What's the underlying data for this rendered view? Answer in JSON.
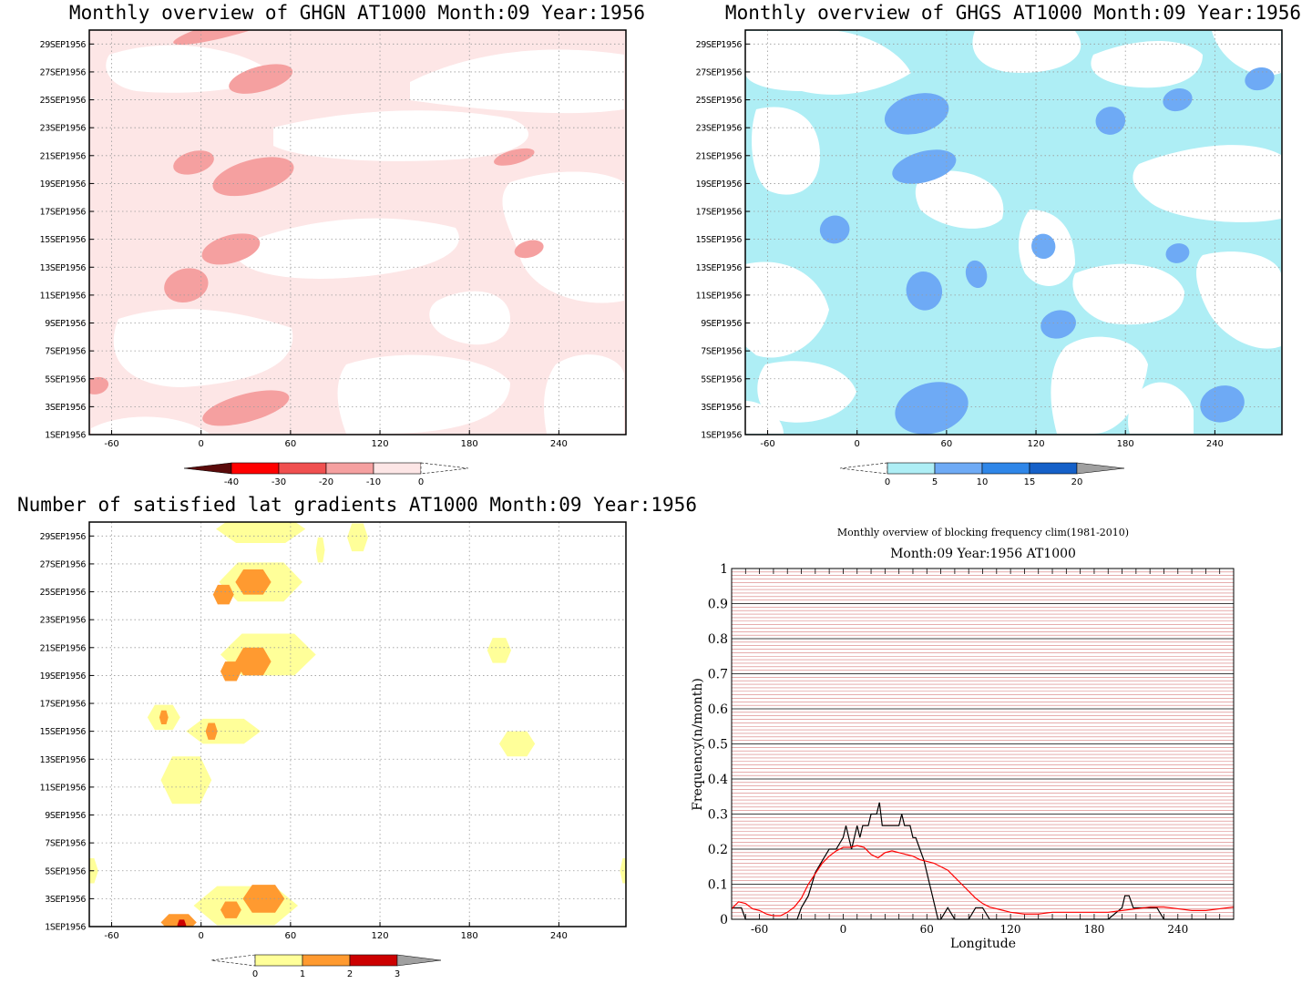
{
  "chart_data": [
    {
      "type": "heatmap",
      "title": "Monthly overview of GHGN AT1000 Month:09 Year:1956",
      "x_ticks": [
        "-60",
        "0",
        "60",
        "120",
        "180",
        "240"
      ],
      "x_tick_values": [
        -60,
        0,
        60,
        120,
        180,
        240
      ],
      "xlim": [
        -75,
        285
      ],
      "y_ticks": [
        "29SEP1956",
        "27SEP1956",
        "25SEP1956",
        "23SEP1956",
        "21SEP1956",
        "19SEP1956",
        "17SEP1956",
        "15SEP1956",
        "13SEP1956",
        "11SEP1956",
        "9SEP1956",
        "7SEP1956",
        "5SEP1956",
        "3SEP1956",
        "1SEP1956"
      ],
      "y_tick_values": [
        29,
        27,
        25,
        23,
        21,
        19,
        17,
        15,
        13,
        11,
        9,
        7,
        5,
        3,
        1
      ],
      "ylim": [
        1,
        30
      ],
      "grid": true,
      "colorbar": {
        "labels": [
          "-40",
          "-30",
          "-20",
          "-10",
          "0"
        ],
        "colors": [
          "#5a0a0a",
          "#ff0000",
          "#f05050",
          "#f5a0a0",
          "#fde6e6"
        ],
        "extend_low": true,
        "extend_high": true
      },
      "patches": [
        {
          "lon": -5,
          "day": 20.5,
          "rx": 14,
          "ry": 0.8,
          "level": "-20"
        },
        {
          "lon": 35,
          "day": 19.5,
          "rx": 28,
          "ry": 1.2,
          "level": "-20"
        },
        {
          "lon": 20,
          "day": 14.3,
          "rx": 20,
          "ry": 1.0,
          "level": "-20"
        },
        {
          "lon": -10,
          "day": 11.7,
          "rx": 15,
          "ry": 1.2,
          "level": "-20"
        },
        {
          "lon": 40,
          "day": 26.5,
          "rx": 22,
          "ry": 0.9,
          "level": "-20"
        },
        {
          "lon": 20,
          "day": 30.2,
          "rx": 40,
          "ry": 0.6,
          "level": "-20"
        },
        {
          "lon": 210,
          "day": 20.9,
          "rx": 14,
          "ry": 0.5,
          "level": "-20"
        },
        {
          "lon": 220,
          "day": 14.3,
          "rx": 10,
          "ry": 0.6,
          "level": "-20"
        },
        {
          "lon": 30,
          "day": 2.9,
          "rx": 30,
          "ry": 1.0,
          "level": "-20"
        },
        {
          "lon": -70,
          "day": 4.5,
          "rx": 8,
          "ry": 0.6,
          "level": "-20"
        }
      ]
    },
    {
      "type": "heatmap",
      "title": "Monthly overview of GHGS AT1000 Month:09 Year:1956",
      "x_ticks": [
        "-60",
        "0",
        "60",
        "120",
        "180",
        "240"
      ],
      "x_tick_values": [
        -60,
        0,
        60,
        120,
        180,
        240
      ],
      "xlim": [
        -75,
        285
      ],
      "y_ticks": [
        "29SEP1956",
        "27SEP1956",
        "25SEP1956",
        "23SEP1956",
        "21SEP1956",
        "19SEP1956",
        "17SEP1956",
        "15SEP1956",
        "13SEP1956",
        "11SEP1956",
        "9SEP1956",
        "7SEP1956",
        "5SEP1956",
        "3SEP1956",
        "1SEP1956"
      ],
      "y_tick_values": [
        29,
        27,
        25,
        23,
        21,
        19,
        17,
        15,
        13,
        11,
        9,
        7,
        5,
        3,
        1
      ],
      "ylim": [
        1,
        30
      ],
      "grid": true,
      "colorbar": {
        "labels": [
          "0",
          "5",
          "10",
          "15",
          "20"
        ],
        "colors": [
          "#aeeef5",
          "#6eaaf5",
          "#2f86e8",
          "#1560c8",
          "#a0a0a0"
        ],
        "extend_low": true,
        "extend_high": true
      },
      "patches": [
        {
          "lon": 40,
          "day": 24.0,
          "rx": 22,
          "ry": 1.4,
          "level": "5"
        },
        {
          "lon": 45,
          "day": 20.2,
          "rx": 22,
          "ry": 1.1,
          "level": "5"
        },
        {
          "lon": -15,
          "day": 15.7,
          "rx": 10,
          "ry": 1.0,
          "level": "5"
        },
        {
          "lon": 45,
          "day": 11.3,
          "rx": 12,
          "ry": 1.4,
          "level": "5"
        },
        {
          "lon": 50,
          "day": 2.9,
          "rx": 25,
          "ry": 1.8,
          "level": "5"
        },
        {
          "lon": 245,
          "day": 3.2,
          "rx": 15,
          "ry": 1.3,
          "level": "5"
        },
        {
          "lon": 170,
          "day": 23.5,
          "rx": 10,
          "ry": 1.0,
          "level": "5"
        },
        {
          "lon": 215,
          "day": 25.0,
          "rx": 10,
          "ry": 0.8,
          "level": "5"
        },
        {
          "lon": 215,
          "day": 14.0,
          "rx": 8,
          "ry": 0.7,
          "level": "5"
        },
        {
          "lon": 135,
          "day": 8.9,
          "rx": 12,
          "ry": 1.0,
          "level": "5"
        },
        {
          "lon": 125,
          "day": 14.5,
          "rx": 8,
          "ry": 0.9,
          "level": "5"
        },
        {
          "lon": 80,
          "day": 12.5,
          "rx": 7,
          "ry": 1.0,
          "level": "5"
        },
        {
          "lon": 270,
          "day": 26.5,
          "rx": 10,
          "ry": 0.8,
          "level": "5"
        }
      ]
    },
    {
      "type": "heatmap",
      "title": "Number of satisfied lat gradients AT1000 Month:09 Year:1956",
      "x_ticks": [
        "-60",
        "0",
        "60",
        "120",
        "180",
        "240"
      ],
      "x_tick_values": [
        -60,
        0,
        60,
        120,
        180,
        240
      ],
      "xlim": [
        -75,
        285
      ],
      "y_ticks": [
        "29SEP1956",
        "27SEP1956",
        "25SEP1956",
        "23SEP1956",
        "21SEP1956",
        "19SEP1956",
        "17SEP1956",
        "15SEP1956",
        "13SEP1956",
        "11SEP1956",
        "9SEP1956",
        "7SEP1956",
        "5SEP1956",
        "3SEP1956",
        "1SEP1956"
      ],
      "y_tick_values": [
        29,
        27,
        25,
        23,
        21,
        19,
        17,
        15,
        13,
        11,
        9,
        7,
        5,
        3,
        1
      ],
      "ylim": [
        1,
        30
      ],
      "grid": true,
      "colorbar": {
        "labels": [
          "0",
          "1",
          "2",
          "3"
        ],
        "colors": [
          "#ffff99",
          "#ff9a30",
          "#cc0000",
          "#a0a0a0"
        ],
        "extend_low": true,
        "extend_high": true
      },
      "patches": [
        {
          "lon": 40,
          "day": 29.5,
          "rx": 30,
          "ry": 1.0,
          "level": "1"
        },
        {
          "lon": 105,
          "day": 28.9,
          "rx": 7,
          "ry": 1.0,
          "level": "1"
        },
        {
          "lon": 80,
          "day": 28.0,
          "rx": 3,
          "ry": 0.9,
          "level": "1"
        },
        {
          "lon": 40,
          "day": 25.7,
          "rx": 28,
          "ry": 1.4,
          "level": "1"
        },
        {
          "lon": 35,
          "day": 25.7,
          "rx": 12,
          "ry": 0.9,
          "level": "2"
        },
        {
          "lon": 15,
          "day": 24.8,
          "rx": 7,
          "ry": 0.7,
          "level": "2"
        },
        {
          "lon": 45,
          "day": 20.5,
          "rx": 32,
          "ry": 1.5,
          "level": "1"
        },
        {
          "lon": 35,
          "day": 20.0,
          "rx": 12,
          "ry": 1.0,
          "level": "2"
        },
        {
          "lon": 20,
          "day": 19.3,
          "rx": 7,
          "ry": 0.7,
          "level": "2"
        },
        {
          "lon": 200,
          "day": 20.8,
          "rx": 8,
          "ry": 0.9,
          "level": "1"
        },
        {
          "lon": -25,
          "day": 16.0,
          "rx": 11,
          "ry": 0.9,
          "level": "1"
        },
        {
          "lon": -25,
          "day": 16.0,
          "rx": 3,
          "ry": 0.5,
          "level": "2"
        },
        {
          "lon": 15,
          "day": 15.0,
          "rx": 25,
          "ry": 0.9,
          "level": "1"
        },
        {
          "lon": 7,
          "day": 15.0,
          "rx": 4,
          "ry": 0.6,
          "level": "2"
        },
        {
          "lon": 212,
          "day": 14.1,
          "rx": 12,
          "ry": 0.9,
          "level": "1"
        },
        {
          "lon": -10,
          "day": 11.5,
          "rx": 17,
          "ry": 1.7,
          "level": "1"
        },
        {
          "lon": -75,
          "day": 5.0,
          "rx": 6,
          "ry": 0.9,
          "level": "1"
        },
        {
          "lon": 285,
          "day": 5.0,
          "rx": 4,
          "ry": 0.9,
          "level": "1"
        },
        {
          "lon": 30,
          "day": 2.5,
          "rx": 35,
          "ry": 1.4,
          "level": "1"
        },
        {
          "lon": 42,
          "day": 3.0,
          "rx": 14,
          "ry": 1.0,
          "level": "2"
        },
        {
          "lon": 20,
          "day": 2.2,
          "rx": 7,
          "ry": 0.6,
          "level": "2"
        },
        {
          "lon": -15,
          "day": 1.3,
          "rx": 12,
          "ry": 0.6,
          "level": "2"
        },
        {
          "lon": -13,
          "day": 1.1,
          "rx": 3,
          "ry": 0.4,
          "level": "3"
        }
      ]
    },
    {
      "type": "line",
      "title": "Monthly overview of blocking frequency clim(1981-2010)",
      "subtitle": "Month:09 Year:1956  AT1000",
      "xlabel": "Longitude",
      "ylabel": "Frequency(n/month)",
      "xlim": [
        -80,
        280
      ],
      "ylim": [
        0,
        1
      ],
      "x_ticks": [
        "-60",
        "0",
        "60",
        "120",
        "180",
        "240"
      ],
      "x_tick_values": [
        -60,
        0,
        60,
        120,
        180,
        240
      ],
      "y_ticks": [
        "0",
        "0.1",
        "0.2",
        "0.3",
        "0.4",
        "0.5",
        "0.6",
        "0.7",
        "0.8",
        "0.9",
        "1"
      ],
      "y_tick_values": [
        0,
        0.1,
        0.2,
        0.3,
        0.4,
        0.5,
        0.6,
        0.7,
        0.8,
        0.9,
        1
      ],
      "grid": true,
      "series": [
        {
          "color": "#000000",
          "x": [
            -80,
            -75,
            -73,
            -70,
            -67,
            -60,
            -50,
            -40,
            -33,
            -30,
            -25,
            -20,
            -15,
            -10,
            -5,
            0,
            2,
            4,
            6,
            8,
            10,
            12,
            14,
            16,
            18,
            20,
            22,
            24,
            26,
            28,
            30,
            32,
            34,
            36,
            38,
            40,
            42,
            44,
            46,
            48,
            50,
            52,
            55,
            58,
            60,
            62,
            64,
            66,
            68,
            70,
            75,
            80,
            82,
            85,
            88,
            90,
            95,
            100,
            105,
            110,
            115,
            120,
            150,
            170,
            190,
            200,
            202,
            205,
            208,
            210,
            220,
            225,
            230,
            240,
            250,
            260,
            270,
            280
          ],
          "y": [
            0.033,
            0.033,
            0.033,
            0.0,
            0.0,
            0.0,
            0.0,
            0.0,
            0.0,
            0.033,
            0.067,
            0.133,
            0.167,
            0.2,
            0.2,
            0.233,
            0.267,
            0.233,
            0.2,
            0.233,
            0.267,
            0.233,
            0.267,
            0.267,
            0.267,
            0.3,
            0.3,
            0.3,
            0.333,
            0.267,
            0.267,
            0.267,
            0.267,
            0.267,
            0.267,
            0.267,
            0.3,
            0.267,
            0.267,
            0.267,
            0.233,
            0.233,
            0.2,
            0.167,
            0.133,
            0.1,
            0.067,
            0.033,
            0.0,
            0.0,
            0.033,
            0.0,
            0.0,
            0.0,
            0.0,
            0.0,
            0.033,
            0.033,
            0.0,
            0.0,
            0.0,
            0.0,
            0.0,
            0.0,
            0.0,
            0.033,
            0.067,
            0.067,
            0.033,
            0.033,
            0.033,
            0.033,
            0.0,
            0.0,
            0.0,
            0.0,
            0.0,
            0.0
          ]
        },
        {
          "color": "#ff0000",
          "x": [
            -80,
            -75,
            -70,
            -65,
            -60,
            -55,
            -50,
            -45,
            -40,
            -35,
            -30,
            -25,
            -20,
            -15,
            -10,
            -5,
            0,
            5,
            10,
            15,
            20,
            25,
            30,
            35,
            40,
            45,
            50,
            55,
            60,
            65,
            70,
            75,
            80,
            85,
            90,
            95,
            100,
            105,
            110,
            115,
            120,
            130,
            140,
            150,
            160,
            170,
            180,
            190,
            200,
            210,
            220,
            230,
            240,
            250,
            260,
            270,
            280
          ],
          "y": [
            0.03,
            0.05,
            0.045,
            0.03,
            0.025,
            0.015,
            0.01,
            0.01,
            0.02,
            0.035,
            0.06,
            0.1,
            0.13,
            0.16,
            0.18,
            0.195,
            0.205,
            0.205,
            0.21,
            0.205,
            0.185,
            0.175,
            0.19,
            0.195,
            0.19,
            0.185,
            0.18,
            0.17,
            0.165,
            0.16,
            0.15,
            0.14,
            0.12,
            0.1,
            0.08,
            0.06,
            0.045,
            0.035,
            0.03,
            0.025,
            0.02,
            0.015,
            0.015,
            0.02,
            0.02,
            0.02,
            0.02,
            0.02,
            0.025,
            0.03,
            0.035,
            0.035,
            0.03,
            0.025,
            0.025,
            0.03,
            0.035
          ]
        }
      ]
    }
  ]
}
